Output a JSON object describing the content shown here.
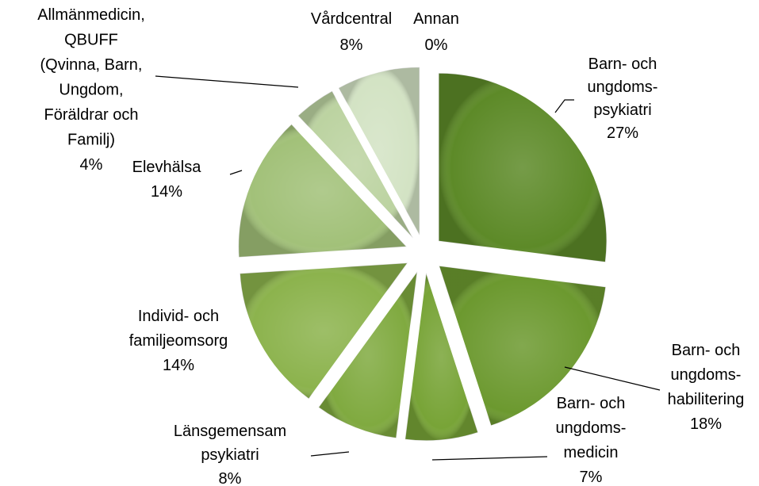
{
  "chart_data": {
    "type": "pie",
    "categories": [
      [
        "Barn- och",
        "ungdoms-",
        "psykiatri"
      ],
      [
        "Barn- och",
        "ungdoms-",
        "habilitering"
      ],
      [
        "Barn- och",
        "ungdoms-",
        "medicin"
      ],
      [
        "Länsgemensam",
        "psykiatri"
      ],
      [
        "Individ- och",
        "familjeomsorg"
      ],
      [
        "Elevhälsa"
      ],
      [
        "Allmänmedicin,",
        "QBUFF",
        "(Qvinna, Barn,",
        "Ungdom,",
        "Föräldrar och",
        "Familj)"
      ],
      [
        "Vårdcentral"
      ],
      [
        "Annan"
      ]
    ],
    "values": [
      27,
      18,
      7,
      8,
      14,
      14,
      4,
      8,
      0
    ],
    "value_labels": [
      "27%",
      "18%",
      "7%",
      "8%",
      "14%",
      "14%",
      "4%",
      "8%",
      "0%"
    ],
    "colors": [
      "#5d8a28",
      "#6c992f",
      "#78a437",
      "#80aa40",
      "#8cb34d",
      "#a2c179",
      "#bcd3a1",
      "#d3e3c4",
      "#e4eedb"
    ]
  }
}
